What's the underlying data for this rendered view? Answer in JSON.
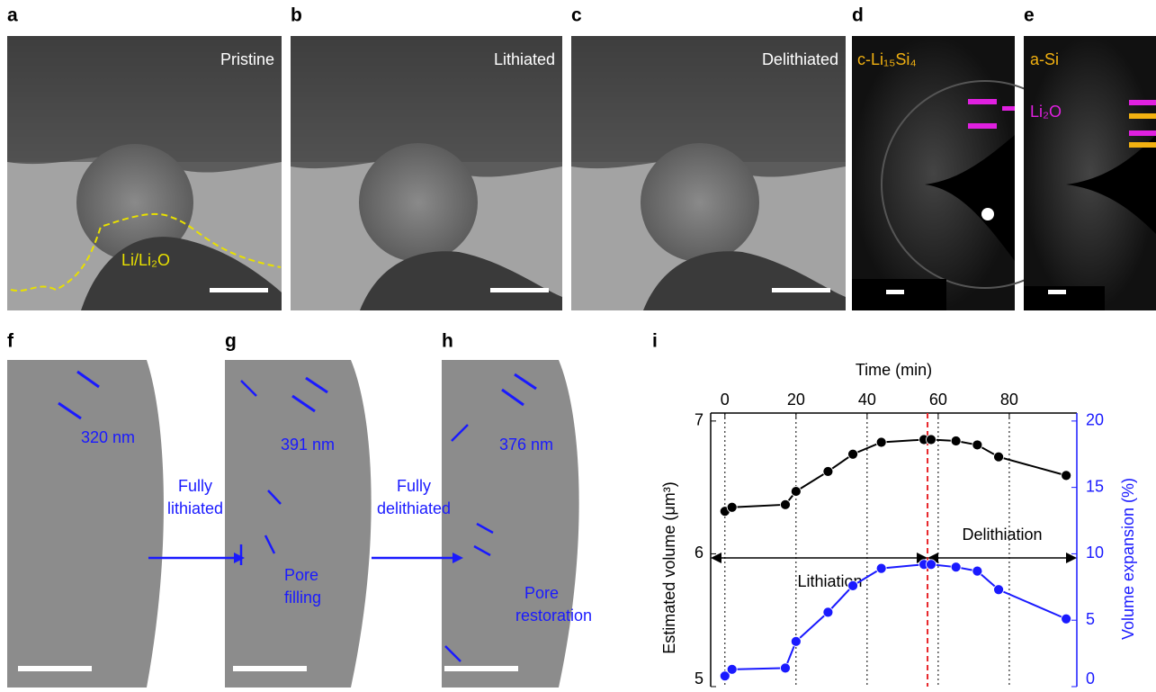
{
  "image_panels": [
    {
      "label": "a",
      "caption": "Pristine",
      "annotation": "Li/Li₂O"
    },
    {
      "label": "b",
      "caption": "Lithiated"
    },
    {
      "label": "c",
      "caption": "Delithiated"
    },
    {
      "label": "d",
      "caption": "c-Li₁₅Si₄"
    },
    {
      "label": "e",
      "caption": "a-Si",
      "annotation": "Li₂O"
    },
    {
      "label": "f",
      "measurement": "320 nm"
    },
    {
      "label": "g",
      "measurement": "391 nm",
      "annotation": [
        "Pore",
        "filling"
      ]
    },
    {
      "label": "h",
      "measurement": "376 nm",
      "annotation": [
        "Pore",
        "restoration"
      ]
    }
  ],
  "transitions": [
    [
      "Fully",
      "lithiated"
    ],
    [
      "Fully",
      "delithiated"
    ]
  ],
  "chart_label": "i",
  "chart_data": {
    "type": "line",
    "x_label": "Time (min)",
    "y_label": "Estimated volume (μm³)",
    "y2_label": "Volume expansion (%)",
    "x": [
      0,
      2,
      17,
      20,
      29,
      36,
      44,
      56,
      58,
      65,
      71,
      77,
      96
    ],
    "series": [
      {
        "color": "#000000",
        "values": [
          6.32,
          6.35,
          6.37,
          6.47,
          6.62,
          6.75,
          6.84,
          6.86,
          6.86,
          6.85,
          6.82,
          6.73,
          6.59
        ]
      },
      {
        "color": "#1a1aff",
        "axis": "y2",
        "values": [
          0.8,
          1.3,
          1.4,
          3.4,
          5.6,
          7.6,
          8.9,
          9.2,
          9.2,
          9.0,
          8.7,
          7.3,
          5.1
        ]
      }
    ],
    "xlim": [
      -4,
      99
    ],
    "xticks": [
      0,
      20,
      40,
      60,
      80
    ],
    "ylim": [
      5,
      7.06
    ],
    "yticks": [
      5,
      6,
      7
    ],
    "y2lim": [
      0,
      20.6
    ],
    "y2ticks": [
      0,
      5,
      10,
      15,
      20
    ],
    "grid": "x",
    "vline": 57,
    "vline_color": "#e8262b",
    "annotations": [
      "Lithiation",
      "Delithiation"
    ]
  }
}
